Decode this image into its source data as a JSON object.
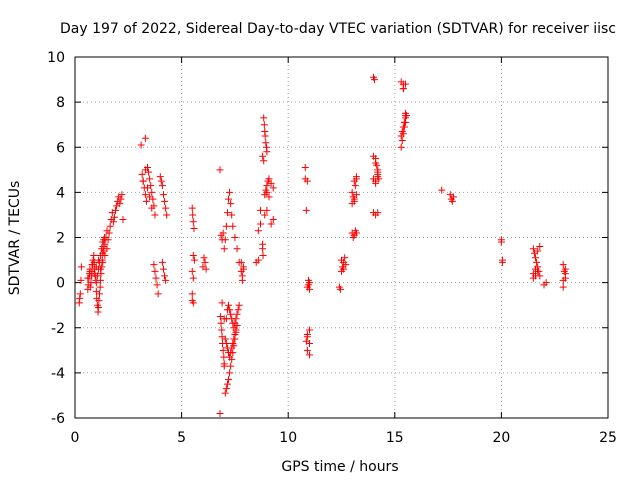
{
  "chart_data": {
    "type": "scatter",
    "title": "Day 197 of 2022, Sidereal Day-to-day VTEC variation (SDTVAR) for receiver iisc",
    "xlabel": "GPS time / hours",
    "ylabel": "SDTVAR / TECUs",
    "xlim": [
      0,
      25
    ],
    "ylim": [
      -6,
      10
    ],
    "xticks": [
      0,
      5,
      10,
      15,
      20,
      25
    ],
    "yticks": [
      -6,
      -4,
      -2,
      0,
      2,
      4,
      6,
      8,
      10
    ],
    "grid": true,
    "marker": "+",
    "marker_color": "#ff0000",
    "series": [
      {
        "name": "SDTVAR",
        "x": [
          0.2,
          0.22,
          0.25,
          0.28,
          0.3,
          0.6,
          0.62,
          0.65,
          0.68,
          0.7,
          0.72,
          0.75,
          0.78,
          0.8,
          0.82,
          0.85,
          0.88,
          0.9,
          0.92,
          0.95,
          0.98,
          1.0,
          1.02,
          1.05,
          1.08,
          1.1,
          1.12,
          1.15,
          1.18,
          1.2,
          1.22,
          1.25,
          1.28,
          1.3,
          1.32,
          1.35,
          1.38,
          0.6,
          0.7,
          0.8,
          0.9,
          1.0,
          1.1,
          1.2,
          1.3,
          1.4,
          1.5,
          1.0,
          1.05,
          1.1,
          1.15,
          1.2,
          1.25,
          1.3,
          1.35,
          1.4,
          1.45,
          1.5,
          1.55,
          1.6,
          1.65,
          1.7,
          1.75,
          1.8,
          1.85,
          1.9,
          1.95,
          2.0,
          2.05,
          2.1,
          2.15,
          2.2,
          2.25,
          3.1,
          3.15,
          3.2,
          3.25,
          3.3,
          3.35,
          3.4,
          3.45,
          3.5,
          3.55,
          3.6,
          3.65,
          3.7,
          3.75,
          3.2,
          3.3,
          3.4,
          3.5,
          3.6,
          3.3,
          3.7,
          3.75,
          3.8,
          3.85,
          3.9,
          4.0,
          4.05,
          4.1,
          4.15,
          4.2,
          4.25,
          4.3,
          4.1,
          4.15,
          4.2,
          4.25,
          5.5,
          5.52,
          5.55,
          5.58,
          5.5,
          5.55,
          5.5,
          5.55,
          5.5,
          5.55,
          5.6,
          6.0,
          6.05,
          6.1,
          6.15,
          6.8,
          6.85,
          6.9,
          6.95,
          7.0,
          6.8,
          6.82,
          6.85,
          6.88,
          6.9,
          6.92,
          6.95,
          6.98,
          7.0,
          7.05,
          7.1,
          7.15,
          7.2,
          7.25,
          7.3,
          7.35,
          7.4,
          7.45,
          7.5,
          7.55,
          7.6,
          7.0,
          7.05,
          7.1,
          7.15,
          7.2,
          7.25,
          7.3,
          7.35,
          7.4,
          7.45,
          7.5,
          7.55,
          7.6,
          7.1,
          7.15,
          7.2,
          7.25,
          7.3,
          7.35,
          7.4,
          7.45,
          7.5,
          7.55,
          7.6,
          7.65,
          7.7,
          6.9,
          7.0,
          7.05,
          7.1,
          7.15,
          7.2,
          7.25,
          7.3,
          7.35,
          7.4,
          7.5,
          7.6,
          7.7,
          7.8,
          7.85,
          7.9,
          7.8,
          7.85,
          7.9,
          8.5,
          8.6,
          8.7,
          8.8,
          8.8,
          8.82,
          8.85,
          8.88,
          8.9,
          8.92,
          8.95,
          8.98,
          9.0,
          8.8,
          8.85,
          8.9,
          8.95,
          9.0,
          9.05,
          9.1,
          9.2,
          9.3,
          9.0,
          9.1,
          9.2,
          9.3,
          8.9,
          9.0,
          8.6,
          8.7,
          10.8,
          10.85,
          10.9,
          10.95,
          11.0,
          10.8,
          10.9,
          11.0,
          10.9,
          11.0,
          10.9,
          11.0,
          10.85,
          10.9,
          10.95,
          11.0,
          12.4,
          12.45,
          12.5,
          12.55,
          12.6,
          12.65,
          12.7,
          12.5,
          12.6,
          13.0,
          13.05,
          13.1,
          13.15,
          13.2,
          13.0,
          13.05,
          13.1,
          13.15,
          13.2,
          13.1,
          13.2,
          13.0,
          13.1,
          13.2,
          14.0,
          14.05,
          14.1,
          14.15,
          14.2,
          14.25,
          14.1,
          14.2,
          14.0,
          14.1,
          14.2,
          14.0,
          14.1,
          14.2,
          14.0,
          14.1,
          14.2,
          15.3,
          15.35,
          15.4,
          15.45,
          15.5,
          15.55,
          15.3,
          15.4,
          15.5,
          15.3,
          15.35,
          15.4,
          15.45,
          15.5,
          15.4,
          15.5,
          15.4,
          15.5,
          17.2,
          17.6,
          17.65,
          17.7,
          17.75,
          20.0,
          20.05,
          20.0,
          20.05,
          21.5,
          21.55,
          21.6,
          21.65,
          21.7,
          21.75,
          21.8,
          21.5,
          21.6,
          21.7,
          21.8,
          21.5,
          21.6,
          21.7,
          22.0,
          22.1,
          22.9,
          22.95,
          23.0,
          22.9,
          23.0,
          22.9,
          23.0
        ],
        "y": [
          -0.9,
          -0.7,
          -0.5,
          0.1,
          0.7,
          -0.3,
          -0.1,
          0.2,
          0.4,
          0.6,
          -0.2,
          0.0,
          0.3,
          0.5,
          0.8,
          1.0,
          1.2,
          0.9,
          0.6,
          0.3,
          0.1,
          -0.4,
          -0.7,
          -1.0,
          -1.3,
          -1.1,
          -0.8,
          -0.5,
          -0.2,
          0.1,
          0.4,
          0.7,
          1.0,
          1.3,
          1.6,
          1.9,
          2.0,
          0.2,
          0.5,
          0.8,
          0.4,
          0.7,
          1.0,
          0.6,
          0.9,
          1.2,
          1.5,
          0.0,
          0.3,
          0.6,
          0.9,
          1.2,
          1.5,
          1.8,
          1.4,
          1.7,
          2.0,
          2.3,
          1.9,
          2.2,
          2.5,
          2.8,
          3.1,
          2.7,
          2.9,
          3.2,
          3.4,
          3.6,
          3.8,
          3.5,
          3.7,
          3.9,
          2.8,
          6.1,
          4.8,
          4.5,
          4.2,
          3.9,
          3.6,
          5.1,
          4.9,
          4.6,
          4.3,
          4.0,
          3.7,
          3.4,
          3.0,
          4.5,
          5.0,
          4.2,
          3.8,
          3.3,
          6.4,
          0.8,
          0.5,
          0.2,
          -0.1,
          -0.5,
          4.7,
          4.5,
          4.3,
          3.9,
          3.6,
          3.3,
          3.0,
          0.9,
          0.6,
          0.3,
          0.1,
          3.3,
          3.0,
          2.7,
          2.4,
          -0.8,
          -0.9,
          0.5,
          0.2,
          -0.5,
          1.2,
          1.0,
          0.7,
          1.1,
          0.9,
          0.6,
          5.0,
          2.1,
          1.9,
          2.2,
          -3.7,
          -5.8,
          -1.5,
          -1.8,
          -2.1,
          -2.4,
          -2.7,
          -3.0,
          -3.3,
          -3.6,
          -4.9,
          -4.7,
          -4.5,
          -4.3,
          -4.0,
          -3.7,
          -3.4,
          -3.1,
          -2.8,
          -2.5,
          -2.2,
          -1.9,
          -1.6,
          -2.5,
          -2.7,
          -2.9,
          -3.1,
          -3.3,
          -3.1,
          -2.9,
          -2.7,
          -2.5,
          -2.3,
          -2.1,
          -1.9,
          -1.6,
          -1.2,
          -1.0,
          -1.2,
          -1.4,
          -1.6,
          -1.8,
          -2.0,
          -1.8,
          -1.6,
          -1.4,
          -1.2,
          -1.0,
          -0.9,
          1.5,
          1.9,
          2.5,
          3.1,
          3.7,
          4.0,
          3.5,
          3.0,
          2.5,
          2.0,
          1.5,
          0.9,
          0.5,
          0.1,
          0.7,
          0.9,
          0.3,
          0.6,
          0.9,
          1.0,
          3.2,
          1.7,
          1.5,
          1.2,
          7.3,
          7.0,
          6.7,
          6.5,
          6.2,
          6.0,
          5.8,
          5.6,
          5.4,
          3.9,
          4.1,
          4.3,
          4.5,
          4.6,
          4.4,
          4.2,
          4.0,
          3.8,
          2.6,
          2.8,
          3.0,
          3.2,
          2.3,
          2.6,
          5.1,
          3.2,
          -0.2,
          -0.1,
          -0.3,
          4.6,
          4.5,
          -2.1,
          -2.4,
          -2.7,
          -3.0,
          -3.2,
          -2.6,
          -2.3,
          0.1,
          0.0,
          -0.2,
          -0.3,
          0.5,
          0.7,
          0.9,
          1.1,
          0.8,
          1.0,
          0.6,
          4.0,
          3.8,
          3.6,
          4.3,
          4.6,
          2.2,
          2.0,
          2.1,
          2.3,
          2.2,
          4.5,
          4.7,
          3.5,
          3.7,
          3.9,
          9.1,
          9.0,
          5.5,
          5.2,
          4.9,
          4.6,
          4.4,
          4.7,
          3.1,
          3.0,
          3.1,
          5.6,
          5.3,
          5.0,
          4.6,
          4.5,
          4.8,
          6.0,
          6.3,
          6.6,
          6.9,
          7.1,
          7.4,
          8.9,
          8.6,
          8.8,
          6.5,
          6.7,
          6.9,
          7.1,
          7.3,
          8.8,
          7.5,
          8.6,
          7.4,
          4.1,
          3.9,
          3.7,
          3.6,
          3.8,
          1.8,
          1.0,
          1.9,
          0.9,
          1.5,
          1.3,
          1.1,
          0.9,
          0.7,
          0.5,
          0.3,
          0.4,
          0.6,
          1.4,
          1.6,
          0.2,
          0.3,
          0.5,
          -0.1,
          0.0,
          0.8,
          0.5,
          0.2,
          -0.2,
          0.4,
          0.1,
          0.6
        ]
      }
    ]
  }
}
